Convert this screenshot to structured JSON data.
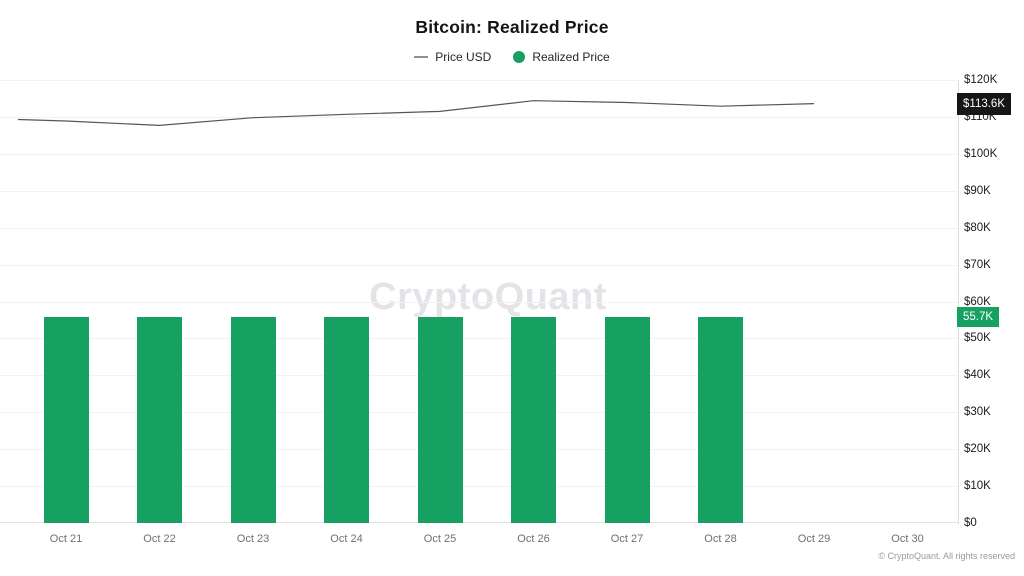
{
  "title": "Bitcoin: Realized Price",
  "watermark": "CryptoQuant",
  "copyright": "© CryptoQuant. All rights reserved",
  "legend": [
    {
      "label": "Price USD",
      "marker": "dash-icon",
      "color": "#8f8f8f"
    },
    {
      "label": "Realized Price",
      "marker": "dot-icon",
      "color": "#16a062"
    }
  ],
  "colors": {
    "line": "#555555",
    "bar": "#16a062",
    "line_badge_bg": "#161616",
    "bar_badge_bg": "#16a062",
    "grid": "#f2f2f5",
    "axis": "#dcdcdf"
  },
  "chart_data": {
    "type": "mixed",
    "title": "Bitcoin: Realized Price",
    "categories": [
      "Oct 21",
      "Oct 22",
      "Oct 23",
      "Oct 24",
      "Oct 25",
      "Oct 26",
      "Oct 27",
      "Oct 28",
      "Oct 29",
      "Oct 30"
    ],
    "series": [
      {
        "name": "Price USD",
        "type": "line",
        "color": "#555555",
        "edge_start": 109300,
        "values": [
          108900,
          107700,
          109800,
          110700,
          111500,
          114400,
          113900,
          112900,
          113600,
          null
        ],
        "end_label": "$113.6K",
        "badge_bg": "#161616"
      },
      {
        "name": "Realized Price",
        "type": "bar",
        "color": "#16a062",
        "values": [
          55700,
          55700,
          55700,
          55700,
          55700,
          55700,
          55700,
          55700,
          null,
          null
        ],
        "end_label": "55.7K",
        "badge_bg": "#16a062"
      }
    ],
    "xlabel": "",
    "ylabel": "",
    "ylim": [
      0,
      120000
    ],
    "y_ticks": [
      "$120K",
      "$110K",
      "$100K",
      "$90K",
      "$80K",
      "$70K",
      "$60K",
      "$50K",
      "$40K",
      "$30K",
      "$20K",
      "$10K",
      "$0"
    ],
    "grid": true,
    "legend_position": "top",
    "yaxis_side": "right"
  }
}
